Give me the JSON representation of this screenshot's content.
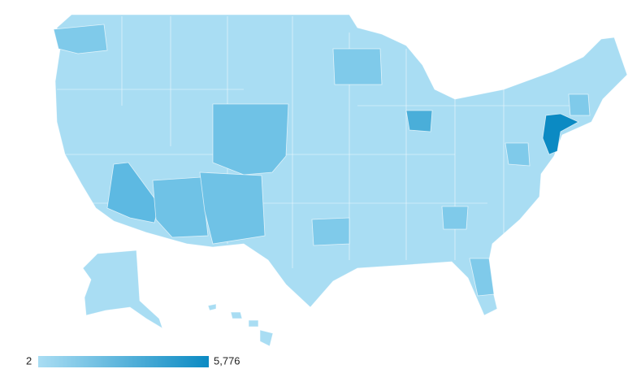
{
  "legend": {
    "min": 2,
    "max": {
      "value": 5776,
      "label": "5,776"
    },
    "colors": [
      "#a9ddf3",
      "#0b8ac3"
    ]
  }
}
